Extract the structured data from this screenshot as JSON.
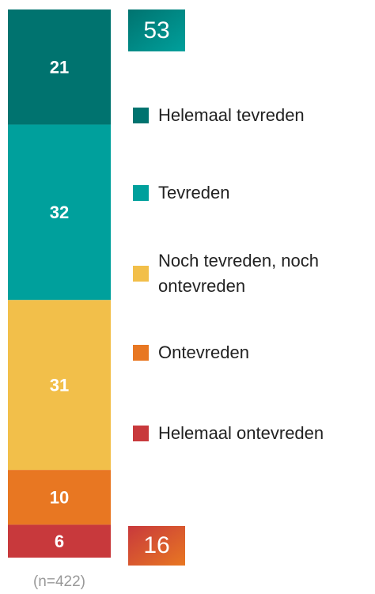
{
  "chart_data": {
    "type": "stacked-bar",
    "series": [
      {
        "name": "Helemaal tevreden",
        "color": "#00736f",
        "values": [
          21
        ]
      },
      {
        "name": "Tevreden",
        "color": "#00a09c",
        "values": [
          32
        ]
      },
      {
        "name": "Noch tevreden, noch ontevreden",
        "color": "#f2bf4a",
        "values": [
          31
        ]
      },
      {
        "name": "Ontevreden",
        "color": "#e87722",
        "values": [
          10
        ]
      },
      {
        "name": "Helemaal ontevreden",
        "color": "#c8393c",
        "values": [
          6
        ]
      }
    ],
    "ylim": [
      0,
      100
    ],
    "annotations": [
      "53",
      "16"
    ],
    "note": "(n=422)"
  }
}
